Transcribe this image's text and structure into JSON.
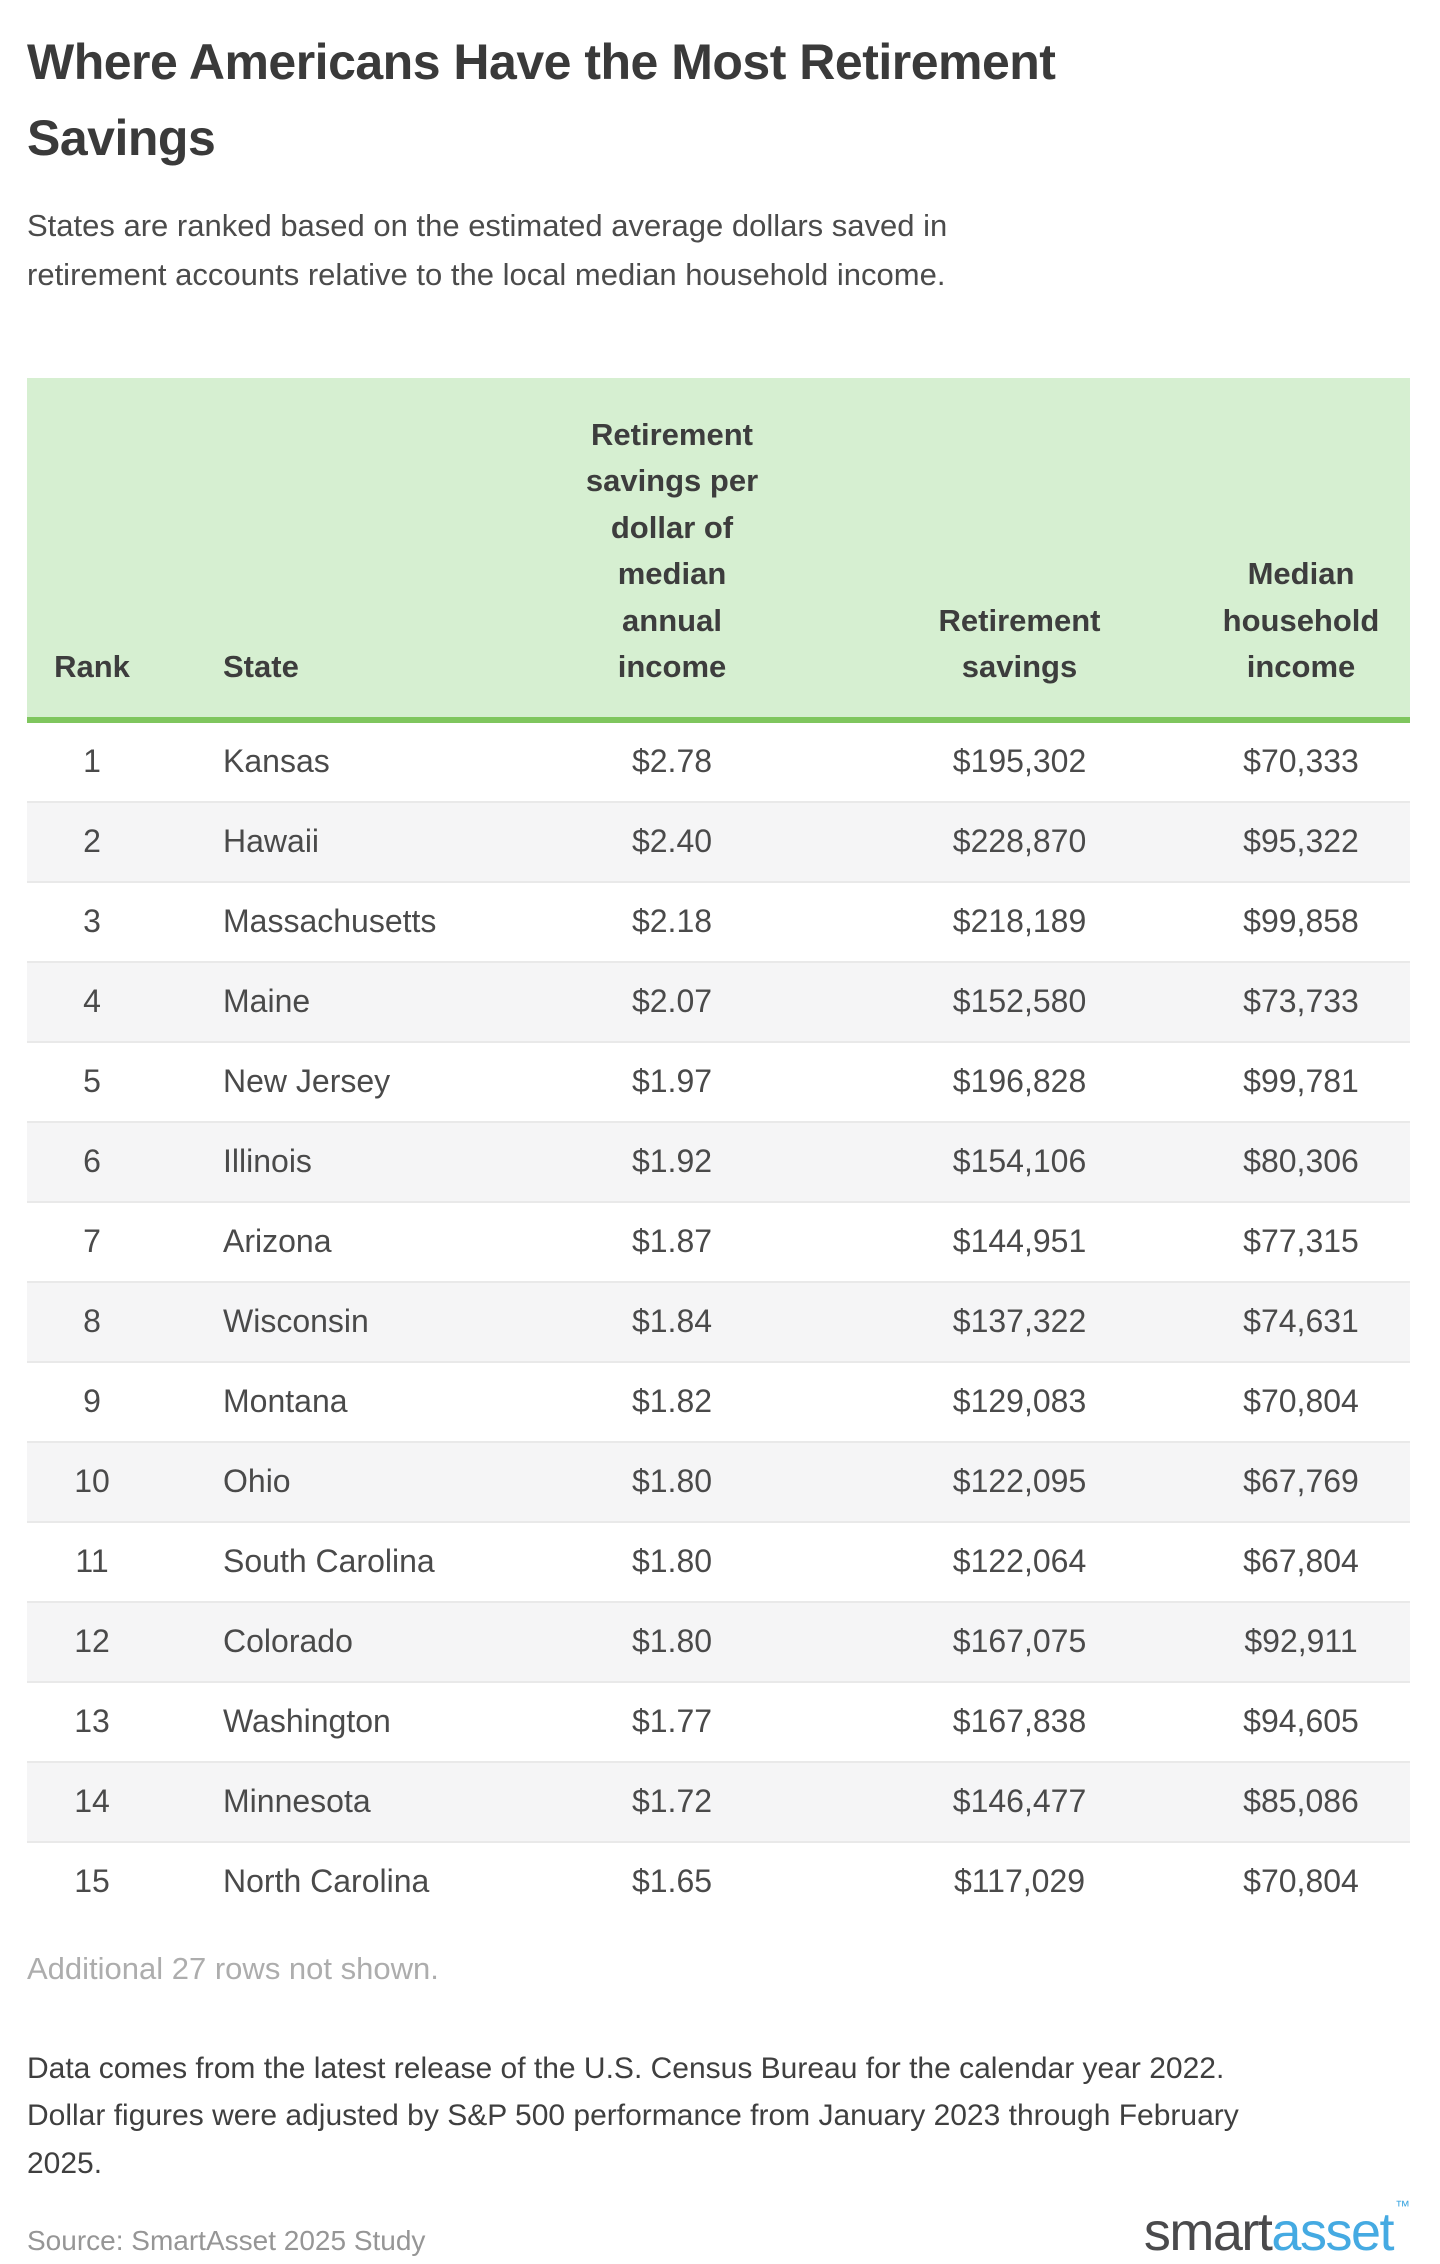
{
  "header": {
    "title": "Where Americans Have the Most Retirement Savings",
    "subtitle": "States are ranked based on the estimated average dollars saved in retirement accounts relative to the local median household income."
  },
  "table": {
    "columns": [
      "Rank",
      "State",
      "Retirement savings per dollar of median annual income",
      "Retirement savings",
      "Median household income"
    ],
    "rows": [
      {
        "rank": "1",
        "state": "Kansas",
        "ratio": "$2.78",
        "savings": "$195,302",
        "income": "$70,333"
      },
      {
        "rank": "2",
        "state": "Hawaii",
        "ratio": "$2.40",
        "savings": "$228,870",
        "income": "$95,322"
      },
      {
        "rank": "3",
        "state": "Massachusetts",
        "ratio": "$2.18",
        "savings": "$218,189",
        "income": "$99,858"
      },
      {
        "rank": "4",
        "state": "Maine",
        "ratio": "$2.07",
        "savings": "$152,580",
        "income": "$73,733"
      },
      {
        "rank": "5",
        "state": "New Jersey",
        "ratio": "$1.97",
        "savings": "$196,828",
        "income": "$99,781"
      },
      {
        "rank": "6",
        "state": "Illinois",
        "ratio": "$1.92",
        "savings": "$154,106",
        "income": "$80,306"
      },
      {
        "rank": "7",
        "state": "Arizona",
        "ratio": "$1.87",
        "savings": "$144,951",
        "income": "$77,315"
      },
      {
        "rank": "8",
        "state": "Wisconsin",
        "ratio": "$1.84",
        "savings": "$137,322",
        "income": "$74,631"
      },
      {
        "rank": "9",
        "state": "Montana",
        "ratio": "$1.82",
        "savings": "$129,083",
        "income": "$70,804"
      },
      {
        "rank": "10",
        "state": "Ohio",
        "ratio": "$1.80",
        "savings": "$122,095",
        "income": "$67,769"
      },
      {
        "rank": "11",
        "state": "South Carolina",
        "ratio": "$1.80",
        "savings": "$122,064",
        "income": "$67,804"
      },
      {
        "rank": "12",
        "state": "Colorado",
        "ratio": "$1.80",
        "savings": "$167,075",
        "income": "$92,911"
      },
      {
        "rank": "13",
        "state": "Washington",
        "ratio": "$1.77",
        "savings": "$167,838",
        "income": "$94,605"
      },
      {
        "rank": "14",
        "state": "Minnesota",
        "ratio": "$1.72",
        "savings": "$146,477",
        "income": "$85,086"
      },
      {
        "rank": "15",
        "state": "North Carolina",
        "ratio": "$1.65",
        "savings": "$117,029",
        "income": "$70,804"
      }
    ],
    "additional_note": "Additional 27 rows not shown."
  },
  "footer": {
    "note": "Data comes from the latest release of the U.S. Census Bureau for the calendar year 2022. Dollar figures were adjusted by S&P 500 performance from January 2023 through February 2025.",
    "source": "Source: SmartAsset 2025 Study",
    "logo": {
      "smart": "smart",
      "asset": "asset",
      "tm": "™"
    }
  },
  "colors": {
    "header_bg": "#d6efd1",
    "accent_green": "#7fc65e",
    "stripe_gray": "#f5f5f6",
    "logo_gray": "#4a4a4c",
    "logo_blue": "#45aae2"
  },
  "chart_data": {
    "type": "table",
    "title": "Where Americans Have the Most Retirement Savings",
    "subtitle": "States are ranked based on the estimated average dollars saved in retirement accounts relative to the local median household income.",
    "columns": [
      "Rank",
      "State",
      "Retirement savings per dollar of median annual income",
      "Retirement savings",
      "Median household income"
    ],
    "rows": [
      [
        1,
        "Kansas",
        "$2.78",
        "$195,302",
        "$70,333"
      ],
      [
        2,
        "Hawaii",
        "$2.40",
        "$228,870",
        "$95,322"
      ],
      [
        3,
        "Massachusetts",
        "$2.18",
        "$218,189",
        "$99,858"
      ],
      [
        4,
        "Maine",
        "$2.07",
        "$152,580",
        "$73,733"
      ],
      [
        5,
        "New Jersey",
        "$1.97",
        "$196,828",
        "$99,781"
      ],
      [
        6,
        "Illinois",
        "$1.92",
        "$154,106",
        "$80,306"
      ],
      [
        7,
        "Arizona",
        "$1.87",
        "$144,951",
        "$77,315"
      ],
      [
        8,
        "Wisconsin",
        "$1.84",
        "$137,322",
        "$74,631"
      ],
      [
        9,
        "Montana",
        "$1.82",
        "$129,083",
        "$70,804"
      ],
      [
        10,
        "Ohio",
        "$1.80",
        "$122,095",
        "$67,769"
      ],
      [
        11,
        "South Carolina",
        "$1.80",
        "$122,064",
        "$67,804"
      ],
      [
        12,
        "Colorado",
        "$1.80",
        "$167,075",
        "$92,911"
      ],
      [
        13,
        "Washington",
        "$1.77",
        "$167,838",
        "$94,605"
      ],
      [
        14,
        "Minnesota",
        "$1.72",
        "$146,477",
        "$85,086"
      ],
      [
        15,
        "North Carolina",
        "$1.65",
        "$117,029",
        "$70,804"
      ]
    ],
    "additional_rows_note": "Additional 27 rows not shown.",
    "methodology_note": "Data comes from the latest release of the U.S. Census Bureau for the calendar year 2022. Dollar figures were adjusted by S&P 500 performance from January 2023 through February 2025.",
    "source": "Source: SmartAsset 2025 Study"
  }
}
